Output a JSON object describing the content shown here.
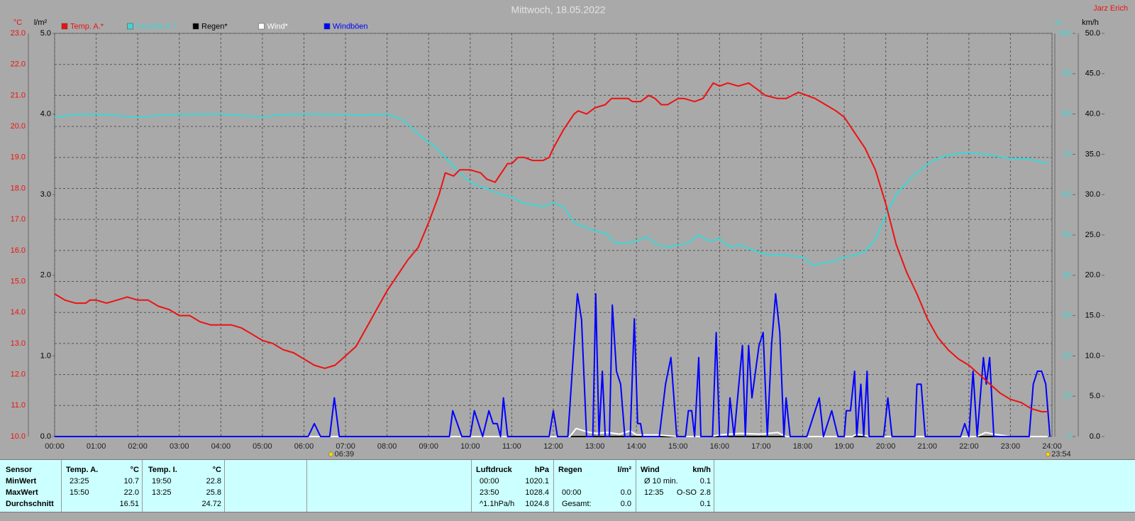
{
  "chart_data": {
    "type": "line",
    "title": "Mittwoch, 18.05.2022",
    "author": "Jarz Erich",
    "units": {
      "temp": "°C",
      "rain": "l/m²",
      "humidity": "%",
      "wind": "km/h"
    },
    "grid": true,
    "xlim": [
      0,
      24
    ],
    "xticks": [
      {
        "value": 0,
        "label": "00:00"
      },
      {
        "value": 1,
        "label": "01:00"
      },
      {
        "value": 2,
        "label": "02:00"
      },
      {
        "value": 3,
        "label": "03:00"
      },
      {
        "value": 4,
        "label": "04:00"
      },
      {
        "value": 5,
        "label": "05:00"
      },
      {
        "value": 6,
        "label": "06:00"
      },
      {
        "value": 7,
        "label": "07:00"
      },
      {
        "value": 8,
        "label": "08:00"
      },
      {
        "value": 9,
        "label": "09:00"
      },
      {
        "value": 10,
        "label": "10:00"
      },
      {
        "value": 11,
        "label": "11:00"
      },
      {
        "value": 12,
        "label": "12:00"
      },
      {
        "value": 13,
        "label": "13:00"
      },
      {
        "value": 14,
        "label": "14:00"
      },
      {
        "value": 15,
        "label": "15:00"
      },
      {
        "value": 16,
        "label": "16:00"
      },
      {
        "value": 17,
        "label": "17:00"
      },
      {
        "value": 18,
        "label": "18:00"
      },
      {
        "value": 19,
        "label": "19:00"
      },
      {
        "value": 20,
        "label": "20:00"
      },
      {
        "value": 21,
        "label": "21:00"
      },
      {
        "value": 22,
        "label": "22:00"
      },
      {
        "value": 23,
        "label": "23:00"
      },
      {
        "value": 24,
        "label": "24:00"
      }
    ],
    "ylim": [
      10,
      23
    ],
    "yticks": [
      {
        "value": 10,
        "label": "10.0"
      },
      {
        "value": 11,
        "label": "11.0"
      },
      {
        "value": 12,
        "label": "12.0"
      },
      {
        "value": 13,
        "label": "13.0"
      },
      {
        "value": 14,
        "label": "14.0"
      },
      {
        "value": 15,
        "label": "15.0"
      },
      {
        "value": 16,
        "label": "16.0"
      },
      {
        "value": 17,
        "label": "17.0"
      },
      {
        "value": 18,
        "label": "18.0"
      },
      {
        "value": 19,
        "label": "19.0"
      },
      {
        "value": 20,
        "label": "20.0"
      },
      {
        "value": 21,
        "label": "21.0"
      },
      {
        "value": 22,
        "label": "22.0"
      },
      {
        "value": 23,
        "label": "23.0"
      }
    ],
    "rain_ylim": [
      0,
      5
    ],
    "rain_yticks": [
      {
        "value": 0,
        "label": "0.0"
      },
      {
        "value": 1,
        "label": "1.0"
      },
      {
        "value": 2,
        "label": "2.0"
      },
      {
        "value": 3,
        "label": "3.0"
      },
      {
        "value": 4,
        "label": "4.0"
      },
      {
        "value": 5,
        "label": "5.0"
      }
    ],
    "humidity_ylim": [
      0,
      100
    ],
    "humidity_yticks": [
      0,
      10,
      20,
      30,
      40,
      50,
      60,
      70,
      80,
      90,
      100
    ],
    "y2lim": [
      0,
      50
    ],
    "y2ticks": [
      {
        "value": 0,
        "label": "0.0"
      },
      {
        "value": 5,
        "label": "5.0"
      },
      {
        "value": 10,
        "label": "10.0"
      },
      {
        "value": 15,
        "label": "15.0"
      },
      {
        "value": 20,
        "label": "20.0"
      },
      {
        "value": 25,
        "label": "25.0"
      },
      {
        "value": 30,
        "label": "30.0"
      },
      {
        "value": 35,
        "label": "35.0"
      },
      {
        "value": 40,
        "label": "40.0"
      },
      {
        "value": 45,
        "label": "45.0"
      },
      {
        "value": 50,
        "label": "50.0"
      }
    ],
    "annotations": [
      {
        "value": 6.65,
        "label": "06:39"
      },
      {
        "value": 23.9,
        "label": "23:54"
      }
    ],
    "series": [
      {
        "name": "Temp. A.*",
        "color": "#ee1111",
        "axis": "y",
        "x": [
          0,
          0.25,
          0.5,
          0.75,
          0.85,
          1,
          1.25,
          1.5,
          1.75,
          2,
          2.25,
          2.5,
          2.75,
          3,
          3.25,
          3.5,
          3.75,
          4,
          4.25,
          4.5,
          4.75,
          5,
          5.25,
          5.5,
          5.75,
          6,
          6.25,
          6.5,
          6.75,
          7,
          7.25,
          7.5,
          7.75,
          8,
          8.25,
          8.5,
          8.75,
          9,
          9.25,
          9.4,
          9.6,
          9.75,
          10,
          10.25,
          10.4,
          10.6,
          10.75,
          10.9,
          11,
          11.15,
          11.3,
          11.5,
          11.75,
          11.9,
          12,
          12.25,
          12.5,
          12.6,
          12.8,
          13,
          13.25,
          13.4,
          13.6,
          13.8,
          13.9,
          14.1,
          14.3,
          14.45,
          14.6,
          14.75,
          15,
          15.15,
          15.4,
          15.6,
          15.85,
          16,
          16.2,
          16.45,
          16.7,
          16.9,
          17.1,
          17.4,
          17.6,
          17.9,
          18.1,
          18.3,
          18.55,
          18.8,
          19,
          19.25,
          19.5,
          19.75,
          20,
          20.25,
          20.5,
          20.75,
          21,
          21.25,
          21.5,
          21.75,
          22,
          22.25,
          22.5,
          22.75,
          23,
          23.25,
          23.5,
          23.75,
          23.9
        ],
        "values": [
          14.6,
          14.4,
          14.3,
          14.3,
          14.4,
          14.4,
          14.3,
          14.4,
          14.5,
          14.4,
          14.4,
          14.2,
          14.1,
          13.9,
          13.9,
          13.7,
          13.6,
          13.6,
          13.6,
          13.5,
          13.3,
          13.1,
          13.0,
          12.8,
          12.7,
          12.5,
          12.3,
          12.2,
          12.3,
          12.6,
          12.9,
          13.5,
          14.1,
          14.7,
          15.2,
          15.7,
          16.1,
          16.9,
          17.8,
          18.5,
          18.4,
          18.6,
          18.6,
          18.5,
          18.3,
          18.2,
          18.5,
          18.8,
          18.8,
          19.0,
          19.0,
          18.9,
          18.9,
          19.0,
          19.3,
          19.9,
          20.4,
          20.5,
          20.4,
          20.6,
          20.7,
          20.9,
          20.9,
          20.9,
          20.8,
          20.8,
          21.0,
          20.9,
          20.7,
          20.7,
          20.9,
          20.9,
          20.8,
          20.9,
          21.4,
          21.3,
          21.4,
          21.3,
          21.4,
          21.2,
          21.0,
          20.9,
          20.9,
          21.1,
          21.0,
          20.9,
          20.7,
          20.5,
          20.3,
          19.8,
          19.3,
          18.6,
          17.5,
          16.2,
          15.3,
          14.6,
          13.8,
          13.2,
          12.8,
          12.5,
          12.3,
          12.0,
          11.7,
          11.4,
          11.2,
          11.1,
          10.9,
          10.8,
          10.8
        ]
      },
      {
        "name": "Feuchte A.*",
        "color": "#3cd6d6",
        "axis": "humidity",
        "x": [
          0,
          0.5,
          1,
          1.5,
          2,
          2.5,
          3,
          4,
          4.5,
          5,
          5.5,
          6,
          7,
          7.5,
          8,
          8.4,
          8.75,
          9,
          9.25,
          9.5,
          9.75,
          10,
          10.25,
          10.5,
          10.75,
          11,
          11.25,
          11.5,
          11.75,
          12,
          12.25,
          12.5,
          12.75,
          13,
          13.25,
          13.5,
          13.75,
          14,
          14.25,
          14.5,
          14.75,
          15,
          15.25,
          15.5,
          15.75,
          16,
          16.25,
          16.5,
          16.75,
          17,
          17.25,
          17.5,
          17.75,
          18,
          18.25,
          18.5,
          18.75,
          19,
          19.25,
          19.5,
          19.75,
          20,
          20.25,
          20.5,
          20.75,
          21,
          21.25,
          21.5,
          21.75,
          22,
          22.5,
          23,
          23.5,
          23.9
        ],
        "values": [
          79.2,
          79.8,
          80.0,
          79.6,
          79.2,
          79.6,
          79.9,
          80.0,
          79.6,
          79.3,
          79.8,
          80.0,
          79.8,
          79.7,
          80.0,
          78.4,
          75.0,
          73.0,
          71.0,
          68.0,
          65.5,
          63.0,
          62.0,
          61.0,
          60.0,
          59.5,
          58.0,
          57.5,
          57.0,
          58.0,
          57.0,
          53.0,
          52.0,
          51.0,
          50.5,
          48.0,
          48.0,
          48.5,
          49.5,
          47.5,
          47.0,
          47.5,
          48.0,
          50.0,
          48.5,
          49.0,
          47.0,
          47.5,
          46.5,
          45.5,
          45.0,
          45.0,
          44.8,
          44.5,
          42.5,
          43.0,
          43.5,
          44.5,
          45.0,
          46.0,
          49.0,
          55.0,
          60.0,
          63.0,
          65.5,
          67.5,
          69.0,
          69.8,
          70.2,
          70.5,
          69.8,
          69.0,
          68.7,
          67.7
        ]
      },
      {
        "name": "Regen*",
        "color": "#000000",
        "axis": "rain",
        "x": [
          0,
          23.9
        ],
        "values": [
          0.0,
          0.0
        ]
      },
      {
        "name": "Wind*",
        "color": "#ffffff",
        "axis": "y2",
        "x": [
          0,
          12.4,
          12.55,
          12.8,
          13,
          13.3,
          13.6,
          13.85,
          14,
          14.5,
          15,
          15.8,
          16,
          16.5,
          17,
          17.4,
          17.6,
          19.2,
          19.3,
          19.6,
          22.2,
          22.4,
          22.6,
          23,
          23.9
        ],
        "values": [
          0,
          0,
          1.0,
          0.6,
          0.4,
          0.5,
          0.3,
          0.7,
          0.2,
          0.2,
          0,
          0,
          0.2,
          0.4,
          0.3,
          0.5,
          0,
          0,
          0.3,
          0,
          0,
          0.5,
          0.3,
          0,
          0
        ]
      },
      {
        "name": "Windböen",
        "color": "#0000ff",
        "axis": "y2",
        "x": [
          0,
          6.1,
          6.25,
          6.4,
          6.62,
          6.73,
          6.85,
          9.5,
          9.58,
          9.8,
          10,
          10.1,
          10.3,
          10.45,
          10.55,
          10.65,
          10.73,
          10.8,
          10.9,
          11.9,
          12,
          12.1,
          12.35,
          12.58,
          12.68,
          12.8,
          12.95,
          13.02,
          13.1,
          13.18,
          13.25,
          13.35,
          13.42,
          13.52,
          13.62,
          13.72,
          13.85,
          13.95,
          14.03,
          14.1,
          14.15,
          14.55,
          14.7,
          14.83,
          14.97,
          15.18,
          15.25,
          15.33,
          15.4,
          15.5,
          15.55,
          15.83,
          15.92,
          16,
          16.2,
          16.25,
          16.35,
          16.55,
          16.62,
          16.7,
          16.78,
          16.95,
          17.05,
          17.15,
          17.25,
          17.35,
          17.45,
          17.55,
          17.6,
          17.7,
          18.1,
          18.4,
          18.5,
          18.7,
          18.85,
          19,
          19.05,
          19.15,
          19.25,
          19.3,
          19.4,
          19.47,
          19.55,
          19.6,
          19.95,
          20.05,
          20.15,
          20.7,
          20.75,
          20.85,
          20.95,
          21.8,
          21.9,
          22,
          22.1,
          22.2,
          22.35,
          22.42,
          22.5,
          22.6,
          23.45,
          23.55,
          23.65,
          23.75,
          23.85,
          23.95
        ],
        "values": [
          0,
          0,
          1.6,
          0,
          0,
          4.8,
          0,
          0,
          3.2,
          0,
          0,
          3.2,
          0,
          3.2,
          1.6,
          1.6,
          0,
          4.8,
          0,
          0,
          3.2,
          0,
          0,
          17.7,
          14.5,
          0,
          0,
          17.7,
          0,
          8.1,
          0,
          0,
          16.3,
          8.1,
          6.5,
          0,
          0,
          14.6,
          1.6,
          1.6,
          0,
          0,
          6.5,
          9.8,
          0,
          0,
          3.2,
          3.2,
          0,
          9.8,
          0,
          0,
          12.9,
          0,
          0,
          4.8,
          0,
          11.3,
          0,
          11.3,
          4.8,
          11.3,
          12.9,
          0,
          11.3,
          17.7,
          12.9,
          0,
          4.8,
          0,
          0,
          4.8,
          0,
          3.2,
          0,
          0,
          3.2,
          3.2,
          8.1,
          0,
          6.5,
          0,
          8.1,
          0,
          0,
          4.8,
          0,
          0,
          6.5,
          6.5,
          0,
          0,
          1.6,
          0,
          8.1,
          0,
          9.8,
          6.5,
          9.8,
          0,
          0,
          6.5,
          8.1,
          8.1,
          6.5,
          0
        ]
      }
    ]
  },
  "table": {
    "labels": {
      "header": "Sensor",
      "rows": [
        "MinWert",
        "MaxWert",
        "Durchschnitt"
      ]
    },
    "panels": [
      {
        "name": "Temp. A.",
        "unit": "°C",
        "rows": [
          [
            "23:25",
            "10.7"
          ],
          [
            "15:50",
            "22.0"
          ],
          [
            "16.51"
          ]
        ]
      },
      {
        "name": "Temp. I.",
        "unit": "°C",
        "rows": [
          [
            "19:50",
            "22.8"
          ],
          [
            "13:25",
            "25.8"
          ],
          [
            "24.72"
          ]
        ]
      },
      {
        "name": "Luftdruck",
        "unit": "hPa",
        "rows": [
          [
            "00:00",
            "1020.1"
          ],
          [
            "23:50",
            "1028.4"
          ],
          [
            "^1.1hPa/h",
            "1024.8"
          ]
        ]
      },
      {
        "name": "Regen",
        "unit": "l/m²",
        "rows": [
          [],
          [
            "00:00",
            "0.0"
          ],
          [
            "Gesamt:",
            "0.0"
          ]
        ]
      },
      {
        "name": "Wind",
        "unit": "km/h",
        "rows": [
          [
            "Ø 10 min.",
            "0.1"
          ],
          [
            "12:35",
            "O-SO",
            "2.8"
          ],
          [
            "0.1"
          ]
        ]
      }
    ]
  }
}
